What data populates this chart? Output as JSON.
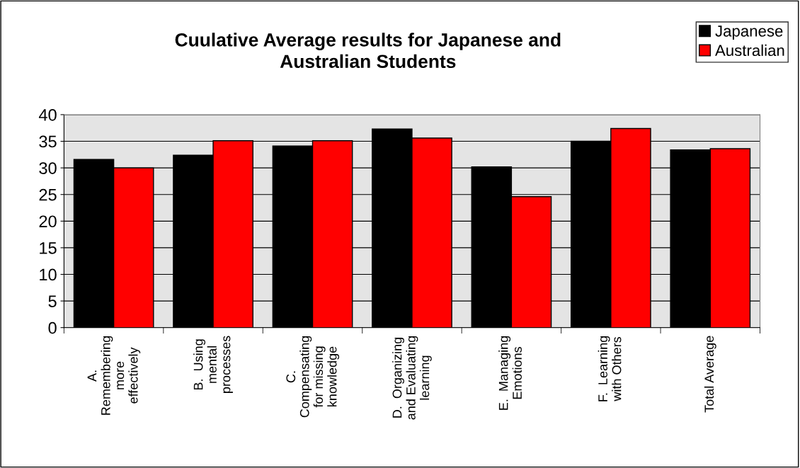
{
  "chart_data": {
    "type": "bar",
    "title": "Cuulative Average results for Japanese and\nAustralian Students",
    "categories": [
      "A.\nRemembering\nmore\neffectively",
      "B.  Using\nmental\nprocesses",
      "C.\nCompensating\nfor missing\nknowledge",
      "D.  Organizing\nand Evaluating\nlearning",
      "E.  Managing\nEmotions",
      "F.  Learning\nwith Others",
      "Total Average"
    ],
    "series": [
      {
        "name": "Japanese",
        "color": "#000000",
        "values": [
          31.6,
          32.4,
          34.1,
          37.3,
          30.2,
          35.0,
          33.4
        ]
      },
      {
        "name": "Australian",
        "color": "#ff0000",
        "values": [
          30.0,
          35.1,
          35.1,
          35.6,
          24.6,
          37.4,
          33.6
        ]
      }
    ],
    "ylim": [
      0,
      40
    ],
    "yticks": [
      0,
      5,
      10,
      15,
      20,
      25,
      30,
      35,
      40
    ],
    "grid": "y",
    "legend": "top right"
  }
}
